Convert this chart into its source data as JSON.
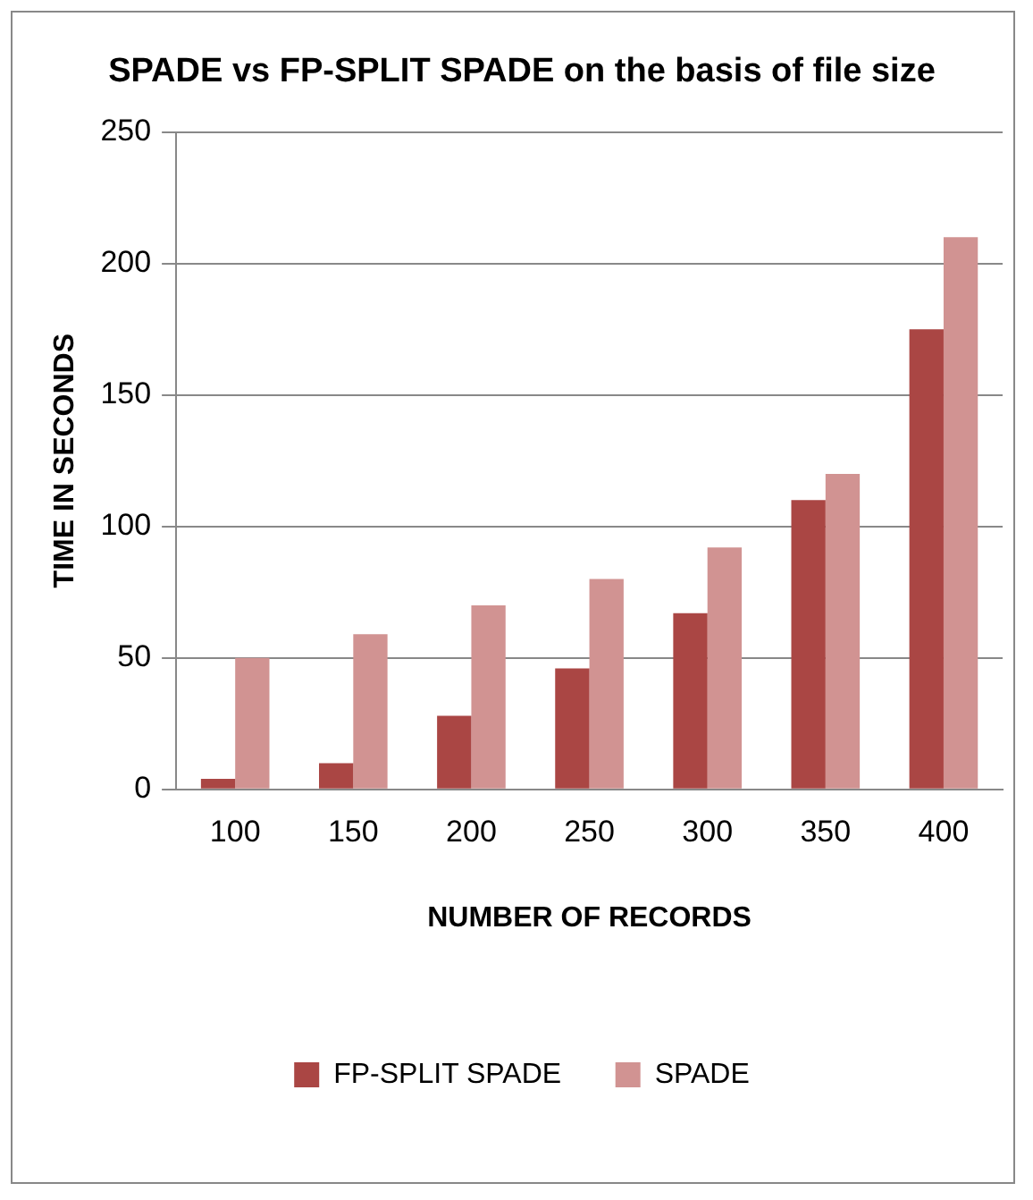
{
  "chart_data": {
    "type": "bar",
    "title": "SPADE vs FP-SPLIT SPADE on the basis of file size",
    "xlabel": "NUMBER OF RECORDS",
    "ylabel": "TIME IN SECONDS",
    "categories": [
      "100",
      "150",
      "200",
      "250",
      "300",
      "350",
      "400"
    ],
    "series": [
      {
        "name": "FP-SPLIT SPADE",
        "color": "#aa4644",
        "values": [
          4,
          10,
          28,
          46,
          67,
          110,
          175
        ]
      },
      {
        "name": "SPADE",
        "color": "#d19392",
        "values": [
          50,
          59,
          70,
          80,
          92,
          120,
          210
        ]
      }
    ],
    "ylim": [
      0,
      250
    ],
    "yticks": [
      0,
      50,
      100,
      150,
      200,
      250
    ],
    "grid": "y",
    "legend": "bottom"
  }
}
